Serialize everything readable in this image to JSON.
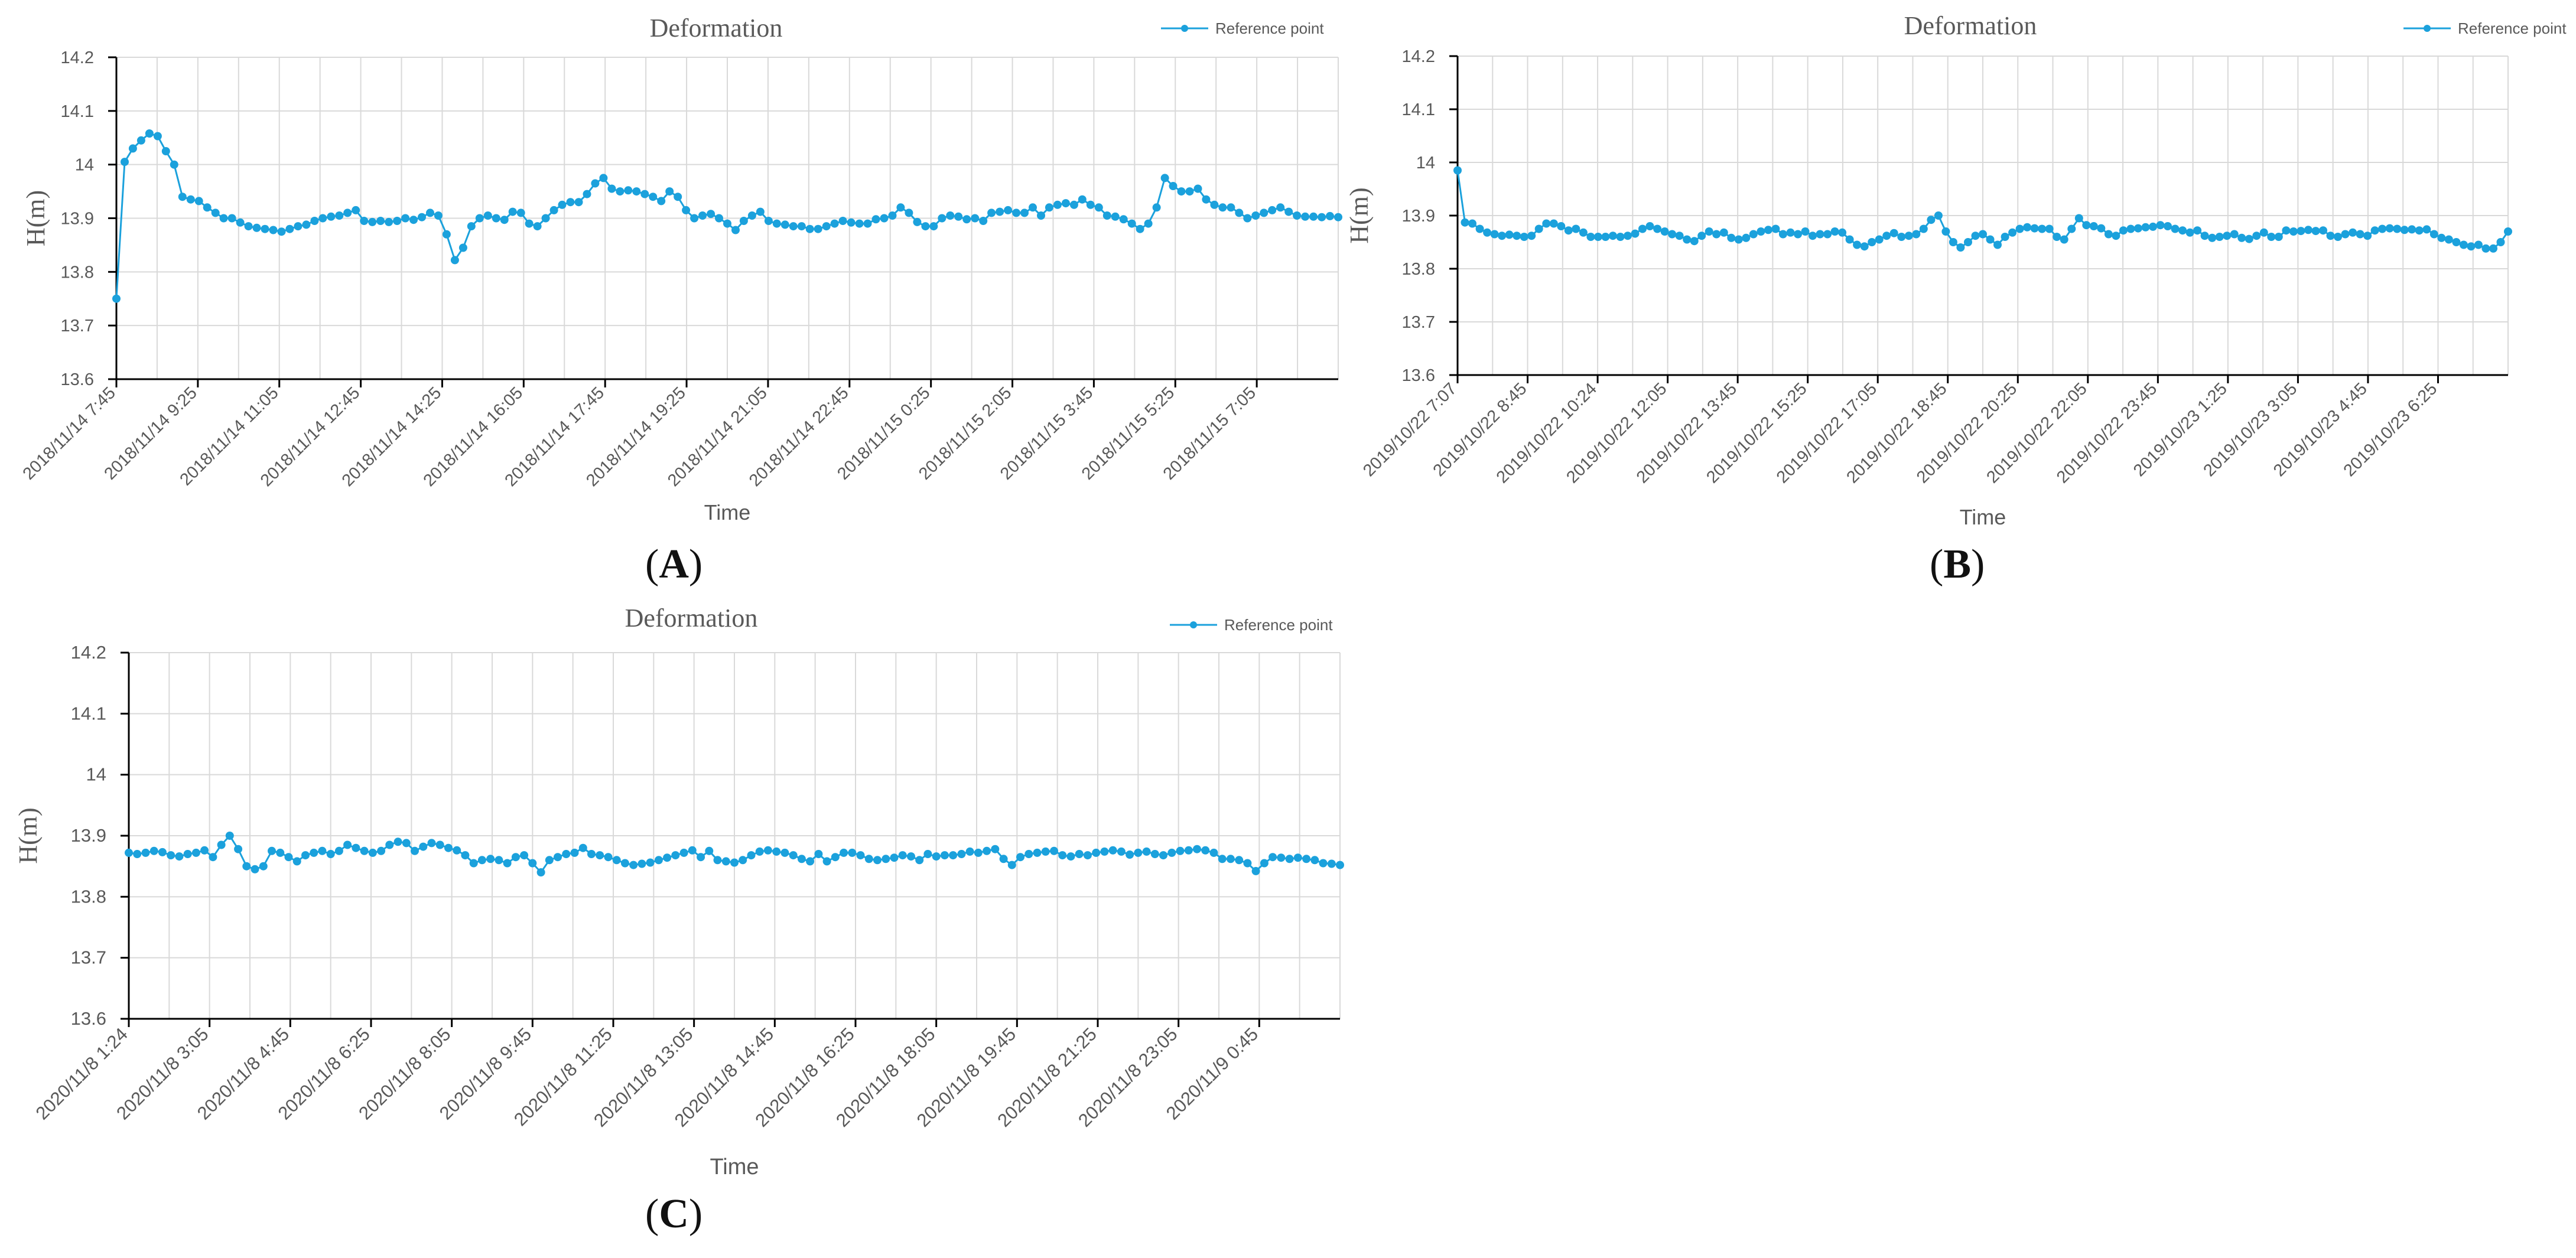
{
  "panel_labels": [
    "A",
    "B",
    "C"
  ],
  "chart_data": [
    {
      "type": "line",
      "panel": "A",
      "title": "Deformation",
      "xlabel": "Time",
      "ylabel": "H(m)",
      "ylim": [
        13.6,
        14.2
      ],
      "yticks": [
        "14.2",
        "14.1",
        "14",
        "13.9",
        "13.8",
        "13.7",
        "13.6"
      ],
      "xtick_labels": [
        "2018/11/14 7:45",
        "2018/11/14 9:25",
        "2018/11/14 11:05",
        "2018/11/14 12:45",
        "2018/11/14 14:25",
        "2018/11/14 16:05",
        "2018/11/14 17:45",
        "2018/11/14 19:25",
        "2018/11/14 21:05",
        "2018/11/14 22:45",
        "2018/11/15 0:25",
        "2018/11/15 2:05",
        "2018/11/15 3:45",
        "2018/11/15 5:25",
        "2018/11/15 7:05"
      ],
      "grid": true,
      "legend": "top-right",
      "series": [
        {
          "name": "Reference point",
          "color": "#1ba1dc",
          "values": [
            13.75,
            14.005,
            14.03,
            14.045,
            14.058,
            14.053,
            14.025,
            14.0,
            13.94,
            13.935,
            13.932,
            13.92,
            13.91,
            13.9,
            13.9,
            13.892,
            13.885,
            13.882,
            13.88,
            13.878,
            13.875,
            13.88,
            13.885,
            13.888,
            13.895,
            13.9,
            13.903,
            13.905,
            13.91,
            13.915,
            13.895,
            13.893,
            13.895,
            13.893,
            13.895,
            13.9,
            13.897,
            13.902,
            13.91,
            13.905,
            13.87,
            13.822,
            13.845,
            13.885,
            13.9,
            13.905,
            13.9,
            13.897,
            13.912,
            13.91,
            13.89,
            13.885,
            13.9,
            13.915,
            13.925,
            13.93,
            13.93,
            13.945,
            13.965,
            13.975,
            13.955,
            13.95,
            13.952,
            13.95,
            13.945,
            13.94,
            13.932,
            13.95,
            13.94,
            13.915,
            13.9,
            13.905,
            13.908,
            13.9,
            13.89,
            13.878,
            13.895,
            13.905,
            13.912,
            13.895,
            13.89,
            13.888,
            13.885,
            13.885,
            13.88,
            13.88,
            13.885,
            13.89,
            13.895,
            13.892,
            13.89,
            13.89,
            13.898,
            13.9,
            13.905,
            13.92,
            13.91,
            13.893,
            13.885,
            13.885,
            13.9,
            13.905,
            13.903,
            13.898,
            13.9,
            13.895,
            13.91,
            13.912,
            13.915,
            13.91,
            13.91,
            13.92,
            13.905,
            13.92,
            13.925,
            13.928,
            13.925,
            13.935,
            13.925,
            13.92,
            13.905,
            13.903,
            13.898,
            13.89,
            13.88,
            13.89,
            13.92,
            13.975,
            13.96,
            13.95,
            13.95,
            13.955,
            13.935,
            13.925,
            13.92,
            13.92,
            13.91,
            13.9,
            13.905,
            13.91,
            13.915,
            13.92,
            13.912,
            13.905,
            13.903,
            13.903,
            13.902,
            13.904,
            13.902
          ]
        }
      ]
    },
    {
      "type": "line",
      "panel": "B",
      "title": "Deformation",
      "xlabel": "Time",
      "ylabel": "H(m)",
      "ylim": [
        13.6,
        14.2
      ],
      "yticks": [
        "14.2",
        "14.1",
        "14",
        "13.9",
        "13.8",
        "13.7",
        "13.6"
      ],
      "xtick_labels": [
        "2019/10/22 7:07",
        "2019/10/22 8:45",
        "2019/10/22 10:24",
        "2019/10/22 12:05",
        "2019/10/22 13:45",
        "2019/10/22 15:25",
        "2019/10/22 17:05",
        "2019/10/22 18:45",
        "2019/10/22 20:25",
        "2019/10/22 22:05",
        "2019/10/22 23:45",
        "2019/10/23 1:25",
        "2019/10/23 3:05",
        "2019/10/23 4:45",
        "2019/10/23 6:25"
      ],
      "grid": true,
      "legend": "top-right",
      "series": [
        {
          "name": "Reference point",
          "color": "#1ba1dc",
          "values": [
            13.985,
            13.887,
            13.885,
            13.875,
            13.868,
            13.865,
            13.862,
            13.864,
            13.862,
            13.86,
            13.862,
            13.875,
            13.885,
            13.885,
            13.88,
            13.872,
            13.875,
            13.868,
            13.86,
            13.86,
            13.86,
            13.862,
            13.86,
            13.862,
            13.866,
            13.875,
            13.88,
            13.875,
            13.87,
            13.865,
            13.862,
            13.855,
            13.852,
            13.862,
            13.87,
            13.865,
            13.868,
            13.858,
            13.855,
            13.858,
            13.865,
            13.87,
            13.873,
            13.875,
            13.865,
            13.868,
            13.865,
            13.87,
            13.862,
            13.865,
            13.865,
            13.87,
            13.868,
            13.855,
            13.845,
            13.842,
            13.85,
            13.855,
            13.862,
            13.867,
            13.86,
            13.862,
            13.865,
            13.875,
            13.892,
            13.9,
            13.87,
            13.85,
            13.84,
            13.85,
            13.862,
            13.865,
            13.855,
            13.845,
            13.86,
            13.868,
            13.875,
            13.878,
            13.876,
            13.875,
            13.875,
            13.86,
            13.855,
            13.875,
            13.895,
            13.882,
            13.88,
            13.876,
            13.865,
            13.862,
            13.872,
            13.875,
            13.876,
            13.878,
            13.879,
            13.882,
            13.88,
            13.875,
            13.872,
            13.868,
            13.872,
            13.862,
            13.858,
            13.86,
            13.862,
            13.865,
            13.858,
            13.856,
            13.862,
            13.868,
            13.86,
            13.86,
            13.872,
            13.87,
            13.871,
            13.873,
            13.871,
            13.872,
            13.862,
            13.86,
            13.865,
            13.868,
            13.865,
            13.862,
            13.872,
            13.875,
            13.876,
            13.875,
            13.873,
            13.874,
            13.872,
            13.874,
            13.865,
            13.858,
            13.855,
            13.85,
            13.845,
            13.842,
            13.845,
            13.838,
            13.838,
            13.85,
            13.87
          ]
        }
      ]
    },
    {
      "type": "line",
      "panel": "C",
      "title": "Deformation",
      "xlabel": "Time",
      "ylabel": "H(m)",
      "ylim": [
        13.6,
        14.2
      ],
      "yticks": [
        "14.2",
        "14.1",
        "14",
        "13.9",
        "13.8",
        "13.7",
        "13.6"
      ],
      "xtick_labels": [
        "2020/11/8 1:24",
        "2020/11/8 3:05",
        "2020/11/8 4:45",
        "2020/11/8 6:25",
        "2020/11/8 8:05",
        "2020/11/8 9:45",
        "2020/11/8 11:25",
        "2020/11/8 13:05",
        "2020/11/8 14:45",
        "2020/11/8 16:25",
        "2020/11/8 18:05",
        "2020/11/8 19:45",
        "2020/11/8 21:25",
        "2020/11/8 23:05",
        "2020/11/9 0:45"
      ],
      "grid": true,
      "legend": "top-right",
      "series": [
        {
          "name": "Reference point",
          "color": "#1ba1dc",
          "values": [
            13.872,
            13.87,
            13.872,
            13.875,
            13.873,
            13.868,
            13.866,
            13.87,
            13.872,
            13.876,
            13.865,
            13.885,
            13.9,
            13.878,
            13.85,
            13.845,
            13.85,
            13.875,
            13.872,
            13.865,
            13.858,
            13.868,
            13.872,
            13.875,
            13.87,
            13.875,
            13.885,
            13.88,
            13.875,
            13.872,
            13.875,
            13.885,
            13.89,
            13.888,
            13.875,
            13.882,
            13.888,
            13.885,
            13.88,
            13.876,
            13.868,
            13.855,
            13.86,
            13.862,
            13.86,
            13.855,
            13.865,
            13.868,
            13.855,
            13.84,
            13.86,
            13.865,
            13.87,
            13.872,
            13.88,
            13.87,
            13.868,
            13.865,
            13.86,
            13.855,
            13.852,
            13.854,
            13.856,
            13.86,
            13.864,
            13.868,
            13.872,
            13.876,
            13.865,
            13.875,
            13.86,
            13.858,
            13.856,
            13.86,
            13.868,
            13.874,
            13.876,
            13.874,
            13.872,
            13.868,
            13.862,
            13.858,
            13.87,
            13.858,
            13.865,
            13.872,
            13.872,
            13.868,
            13.862,
            13.86,
            13.862,
            13.864,
            13.868,
            13.866,
            13.86,
            13.87,
            13.866,
            13.868,
            13.868,
            13.87,
            13.874,
            13.872,
            13.875,
            13.878,
            13.862,
            13.852,
            13.865,
            13.87,
            13.872,
            13.874,
            13.875,
            13.868,
            13.866,
            13.87,
            13.868,
            13.872,
            13.874,
            13.876,
            13.874,
            13.869,
            13.872,
            13.874,
            13.87,
            13.868,
            13.872,
            13.875,
            13.876,
            13.878,
            13.876,
            13.872,
            13.862,
            13.862,
            13.86,
            13.855,
            13.842,
            13.855,
            13.865,
            13.864,
            13.862,
            13.864,
            13.862,
            13.86,
            13.855,
            13.854,
            13.852
          ]
        }
      ]
    }
  ]
}
